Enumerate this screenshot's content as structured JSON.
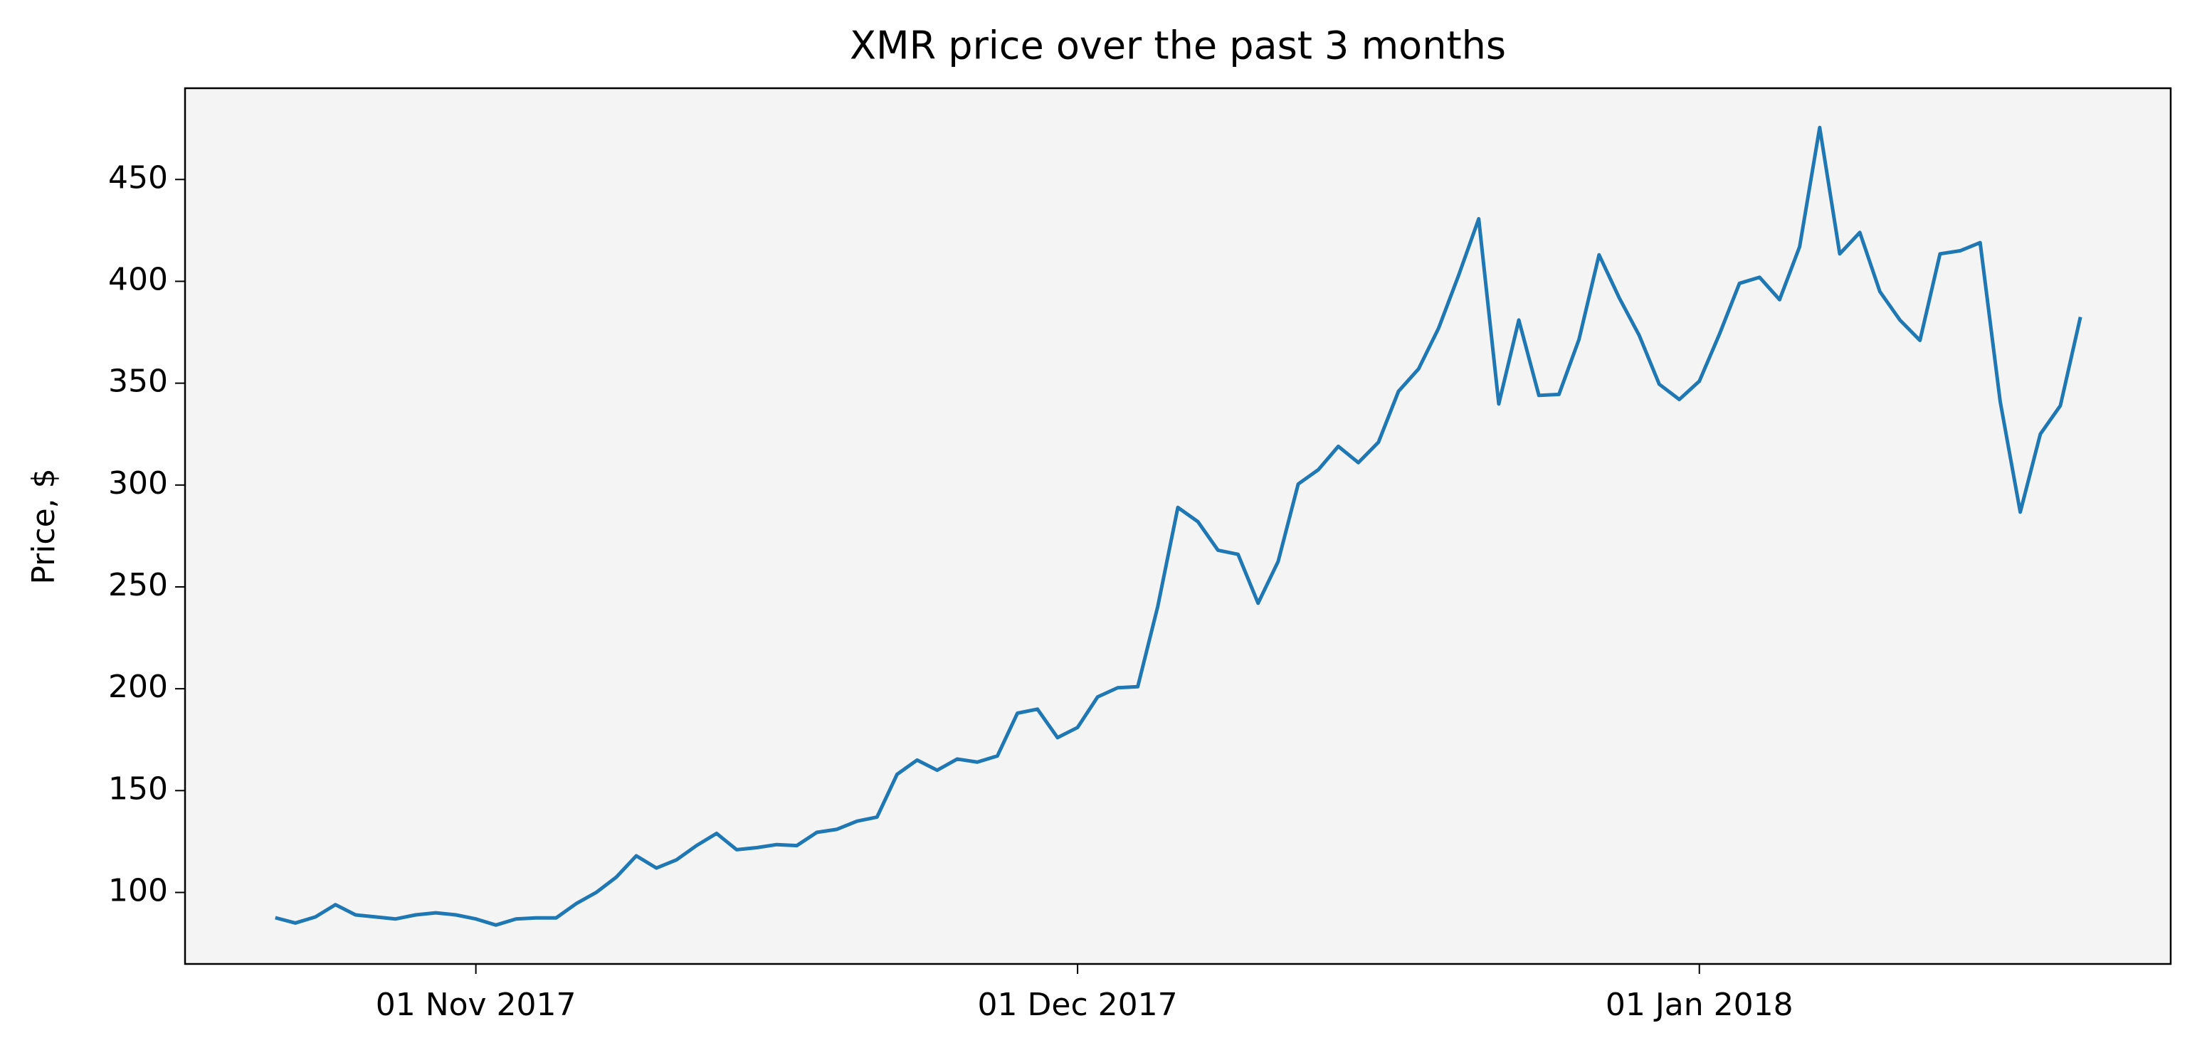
{
  "chart_data": {
    "type": "line",
    "title": "XMR price over the past 3 months",
    "y_label": "Price, $",
    "x": [
      "2017-10-22",
      "2017-10-23",
      "2017-10-24",
      "2017-10-25",
      "2017-10-26",
      "2017-10-27",
      "2017-10-28",
      "2017-10-29",
      "2017-10-30",
      "2017-10-31",
      "2017-11-01",
      "2017-11-02",
      "2017-11-03",
      "2017-11-04",
      "2017-11-05",
      "2017-11-06",
      "2017-11-07",
      "2017-11-08",
      "2017-11-09",
      "2017-11-10",
      "2017-11-11",
      "2017-11-12",
      "2017-11-13",
      "2017-11-14",
      "2017-11-15",
      "2017-11-16",
      "2017-11-17",
      "2017-11-18",
      "2017-11-19",
      "2017-11-20",
      "2017-11-21",
      "2017-11-22",
      "2017-11-23",
      "2017-11-24",
      "2017-11-25",
      "2017-11-26",
      "2017-11-27",
      "2017-11-28",
      "2017-11-29",
      "2017-11-30",
      "2017-12-01",
      "2017-12-02",
      "2017-12-03",
      "2017-12-04",
      "2017-12-05",
      "2017-12-06",
      "2017-12-07",
      "2017-12-08",
      "2017-12-09",
      "2017-12-10",
      "2017-12-11",
      "2017-12-12",
      "2017-12-13",
      "2017-12-14",
      "2017-12-15",
      "2017-12-16",
      "2017-12-17",
      "2017-12-18",
      "2017-12-19",
      "2017-12-20",
      "2017-12-21",
      "2017-12-22",
      "2017-12-23",
      "2017-12-24",
      "2017-12-25",
      "2017-12-26",
      "2017-12-27",
      "2017-12-28",
      "2017-12-29",
      "2017-12-30",
      "2017-12-31",
      "2018-01-01",
      "2018-01-02",
      "2018-01-03",
      "2018-01-04",
      "2018-01-05",
      "2018-01-06",
      "2018-01-07",
      "2018-01-08",
      "2018-01-09",
      "2018-01-10",
      "2018-01-11",
      "2018-01-12",
      "2018-01-13",
      "2018-01-14",
      "2018-01-15",
      "2018-01-16",
      "2018-01-17",
      "2018-01-18",
      "2018-01-19",
      "2018-01-20"
    ],
    "series": [
      {
        "name": "XMR",
        "color": "#1f77b4",
        "values": [
          87.6,
          85,
          88,
          94,
          89,
          88,
          87,
          89,
          90,
          89,
          87,
          84,
          87,
          87.5,
          87.5,
          94.5,
          100,
          107.5,
          118,
          112,
          116,
          123,
          129,
          121,
          122,
          123.5,
          123,
          129.5,
          131,
          135,
          137,
          158,
          165,
          160,
          165.5,
          164,
          167,
          188,
          190,
          176,
          181,
          196,
          200.5,
          201,
          240.5,
          289,
          282,
          268,
          266,
          242,
          262.5,
          300.5,
          307.5,
          319,
          311,
          321,
          346,
          357,
          377,
          403,
          430.7,
          339.8,
          381,
          344,
          344.5,
          371.5,
          413,
          392,
          373.5,
          349.5,
          342,
          351,
          374,
          399,
          402,
          391,
          417,
          475.5,
          413.5,
          424,
          395,
          381,
          371,
          413.5,
          415,
          419,
          341,
          286.7,
          325,
          339,
          382.5
        ]
      }
    ],
    "xlim": [
      "2017-10-17T12:00Z",
      "2018-01-24T12:00Z"
    ],
    "xticks": [
      {
        "value": "2017-11-01",
        "label": "01 Nov 2017"
      },
      {
        "value": "2017-12-01",
        "label": "01 Dec 2017"
      },
      {
        "value": "2018-01-01",
        "label": "01 Jan 2018"
      }
    ],
    "ylim": [
      64.9,
      494.8
    ],
    "yticks": [
      100,
      150,
      200,
      250,
      300,
      350,
      400,
      450
    ],
    "background": "#f4f4f4"
  }
}
